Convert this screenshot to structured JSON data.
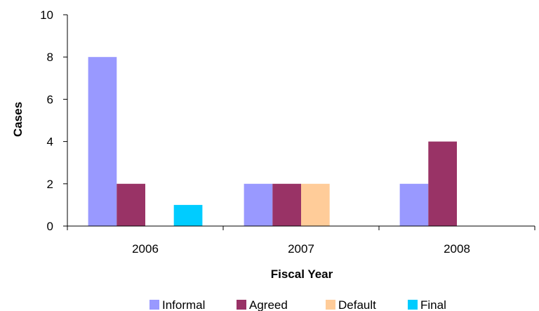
{
  "chart_data": {
    "type": "bar",
    "title": "",
    "xlabel": "Fiscal Year",
    "ylabel": "Cases",
    "categories": [
      "2006",
      "2007",
      "2008"
    ],
    "ylim": [
      0,
      10
    ],
    "yticks": [
      0,
      2,
      4,
      6,
      8,
      10
    ],
    "grid": false,
    "legend_position": "bottom",
    "series": [
      {
        "name": "Informal",
        "color": "#9999FF",
        "values": [
          8,
          2,
          2
        ]
      },
      {
        "name": "Agreed",
        "color": "#993366",
        "values": [
          2,
          2,
          4
        ]
      },
      {
        "name": "Default",
        "color": "#FFCC99",
        "values": [
          0,
          2,
          0
        ]
      },
      {
        "name": "Final",
        "color": "#00CCFF",
        "values": [
          1,
          0,
          0
        ]
      }
    ]
  }
}
